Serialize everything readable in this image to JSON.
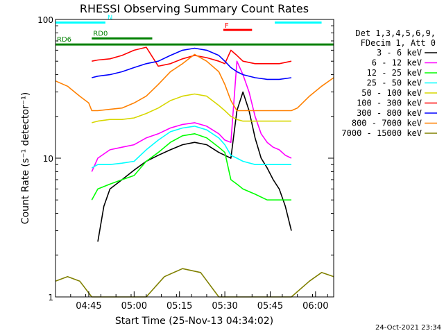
{
  "chart_data": {
    "type": "line",
    "title": "RHESSI Observing Summary Count Rates",
    "xlabel": "Start Time (25-Nov-13 04:34:02)",
    "ylabel": "Count Rate (s⁻¹ detector⁻¹)",
    "y_scale": "log",
    "ylim": [
      1,
      100
    ],
    "y_tick_labels": [
      "1",
      "10",
      "100"
    ],
    "xlim_minutes": [
      0,
      92
    ],
    "x_tick_labels": [
      "04:45",
      "05:00",
      "05:15",
      "05:30",
      "05:45",
      "06:00"
    ],
    "x_tick_minutes": [
      11,
      26,
      41,
      56,
      71,
      86
    ],
    "legend_header": [
      "Det 1,3,4,5,6,9,",
      "FDecim 1, Att 0"
    ],
    "series": [
      {
        "name": "3 - 6 keV",
        "color": "#000000",
        "x": [
          14,
          16,
          18,
          22,
          26,
          30,
          34,
          38,
          42,
          46,
          50,
          54,
          56,
          58,
          60,
          62,
          64,
          66,
          68,
          70,
          72,
          74,
          76,
          78
        ],
        "y": [
          2.5,
          4.5,
          6.0,
          7.0,
          8.2,
          9.5,
          10.5,
          11.5,
          12.5,
          13.0,
          12.5,
          11.0,
          10.5,
          10.0,
          22.0,
          30.0,
          22.0,
          14.0,
          10.0,
          8.5,
          7.0,
          6.0,
          4.5,
          3.0
        ]
      },
      {
        "name": "6 - 12 keV",
        "color": "#ff00ff",
        "x": [
          12,
          14,
          18,
          22,
          26,
          30,
          34,
          38,
          42,
          46,
          50,
          54,
          56,
          58,
          60,
          62,
          64,
          66,
          68,
          70,
          72,
          74,
          76,
          78
        ],
        "y": [
          8.0,
          10.0,
          11.5,
          12.0,
          12.5,
          14.0,
          15.0,
          16.5,
          17.5,
          18.0,
          17.0,
          15.0,
          13.5,
          13.0,
          50.0,
          40.0,
          30.0,
          20.0,
          15.0,
          13.0,
          12.0,
          11.5,
          10.5,
          10.0
        ]
      },
      {
        "name": "12 - 25 keV",
        "color": "#00ff00",
        "x": [
          12,
          14,
          18,
          22,
          26,
          30,
          34,
          38,
          42,
          46,
          50,
          54,
          56,
          58,
          60,
          62,
          66,
          70,
          74,
          78
        ],
        "y": [
          5.0,
          6.0,
          6.5,
          7.0,
          7.5,
          9.5,
          11.0,
          13.0,
          14.5,
          15.0,
          14.0,
          12.0,
          11.0,
          7.0,
          6.5,
          6.0,
          5.5,
          5.0,
          5.0,
          5.0
        ]
      },
      {
        "name": "25 - 50 keV",
        "color": "#00ffff",
        "x": [
          12,
          14,
          18,
          22,
          26,
          30,
          34,
          38,
          42,
          46,
          50,
          54,
          56,
          58,
          60,
          62,
          66,
          70,
          74,
          78
        ],
        "y": [
          8.5,
          9.0,
          9.0,
          9.2,
          9.5,
          11.5,
          13.5,
          15.5,
          16.5,
          17.0,
          16.0,
          14.0,
          12.5,
          10.5,
          10.0,
          9.5,
          9.0,
          9.0,
          9.0,
          9.0
        ]
      },
      {
        "name": "50 - 100 keV",
        "color": "#d7d700",
        "x": [
          12,
          14,
          18,
          22,
          26,
          30,
          34,
          38,
          42,
          46,
          50,
          54,
          56,
          58,
          60,
          62,
          66,
          70,
          74,
          78
        ],
        "y": [
          18.0,
          18.5,
          19.0,
          19.0,
          19.5,
          21.0,
          23.0,
          26.0,
          28.0,
          29.0,
          28.0,
          24.0,
          22.0,
          20.0,
          19.0,
          18.5,
          18.5,
          18.5,
          18.5,
          18.5
        ]
      },
      {
        "name": "100 - 300 keV",
        "color": "#ff0000",
        "x": [
          12,
          14,
          18,
          22,
          26,
          30,
          34,
          38,
          42,
          46,
          50,
          54,
          56,
          58,
          60,
          62,
          66,
          70,
          74,
          78
        ],
        "y": [
          50.0,
          51.0,
          52.0,
          55.0,
          60.0,
          63.0,
          46.0,
          48.0,
          52.0,
          55.0,
          53.0,
          50.0,
          48.0,
          60.0,
          55.0,
          50.0,
          48.0,
          48.0,
          48.0,
          50.0
        ]
      },
      {
        "name": "300 - 800 keV",
        "color": "#0000ff",
        "x": [
          12,
          14,
          18,
          22,
          26,
          30,
          34,
          38,
          42,
          46,
          50,
          54,
          56,
          58,
          60,
          62,
          66,
          70,
          74,
          78
        ],
        "y": [
          38.0,
          39.0,
          40.0,
          42.0,
          45.0,
          48.0,
          50.0,
          55.0,
          60.0,
          62.0,
          60.0,
          55.0,
          50.0,
          45.0,
          42.0,
          40.0,
          38.0,
          37.0,
          37.0,
          38.0
        ]
      },
      {
        "name": "800 - 7000 keV",
        "color": "#ff8000",
        "x": [
          0,
          4,
          8,
          11,
          12,
          14,
          18,
          22,
          26,
          30,
          34,
          38,
          42,
          46,
          50,
          54,
          56,
          58,
          60,
          62,
          66,
          70,
          74,
          78,
          80,
          84,
          88,
          92
        ],
        "y": [
          36.0,
          33.0,
          28.0,
          25.0,
          22.0,
          22.0,
          22.5,
          23.0,
          25.0,
          28.0,
          34.0,
          42.0,
          48.0,
          56.0,
          50.0,
          42.0,
          34.0,
          26.0,
          22.0,
          22.0,
          22.0,
          22.0,
          22.0,
          22.0,
          23.0,
          28.0,
          33.0,
          38.0
        ]
      },
      {
        "name": "7000 - 15000 keV",
        "color": "#808000",
        "x": [
          0,
          4,
          8,
          12,
          18,
          24,
          30,
          36,
          42,
          48,
          54,
          60,
          66,
          72,
          78,
          84,
          88,
          92
        ],
        "y": [
          1.3,
          1.4,
          1.3,
          1.0,
          1.0,
          1.0,
          1.0,
          1.4,
          1.6,
          1.5,
          1.0,
          1.0,
          1.0,
          1.0,
          1.0,
          1.3,
          1.5,
          1.4
        ]
      }
    ],
    "annotations": [
      {
        "label": "N",
        "color": "#00ffff",
        "x_start": 0,
        "x_end": 16.5,
        "y": 95
      },
      {
        "label": "",
        "color": "#00ffff",
        "x_start": 72.5,
        "x_end": 88,
        "y": 95
      },
      {
        "label": "RD0",
        "color": "#008000",
        "x_start": 12,
        "x_end": 32,
        "y": 73
      },
      {
        "label": "RD6",
        "color": "#008000",
        "x_start": 0,
        "x_end": 92,
        "y": 66
      },
      {
        "label": "F",
        "color": "#ff0000",
        "x_start": 55.5,
        "x_end": 65,
        "y": 84
      }
    ],
    "grid": false,
    "legend_position": "right"
  },
  "footer": {
    "date": "24-Oct-2021 23:34"
  }
}
